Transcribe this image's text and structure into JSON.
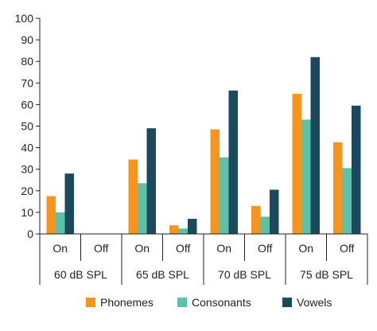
{
  "chart_data": {
    "type": "bar",
    "title": "",
    "xlabel": "",
    "ylabel": "",
    "ylim": [
      0,
      100
    ],
    "yticks": [
      0,
      10,
      20,
      30,
      40,
      50,
      60,
      70,
      80,
      90,
      100
    ],
    "grid": false,
    "legend_position": "bottom",
    "groups": [
      {
        "label": "60 dB SPL",
        "conditions": [
          "On",
          "Off"
        ]
      },
      {
        "label": "65 dB SPL",
        "conditions": [
          "On",
          "Off"
        ]
      },
      {
        "label": "70 dB SPL",
        "conditions": [
          "On",
          "Off"
        ]
      },
      {
        "label": "75 dB SPL",
        "conditions": [
          "On",
          "Off"
        ]
      }
    ],
    "categories": [
      "60 dB SPL On",
      "60 dB SPL Off",
      "65 dB SPL On",
      "65 dB SPL Off",
      "70 dB SPL On",
      "70 dB SPL Off",
      "75 dB SPL On",
      "75 dB SPL Off"
    ],
    "series": [
      {
        "name": "Phonemes",
        "color": "#f7941d",
        "values": [
          17.5,
          null,
          34.5,
          4,
          48.5,
          13,
          65,
          42.5
        ]
      },
      {
        "name": "Consonants",
        "color": "#5cc1a7",
        "values": [
          10,
          null,
          23.5,
          2.5,
          35.5,
          8,
          53,
          30.5
        ]
      },
      {
        "name": "Vowels",
        "color": "#1b4a5f",
        "values": [
          28,
          null,
          49,
          7,
          66.5,
          20.5,
          82,
          59.5
        ]
      }
    ]
  }
}
